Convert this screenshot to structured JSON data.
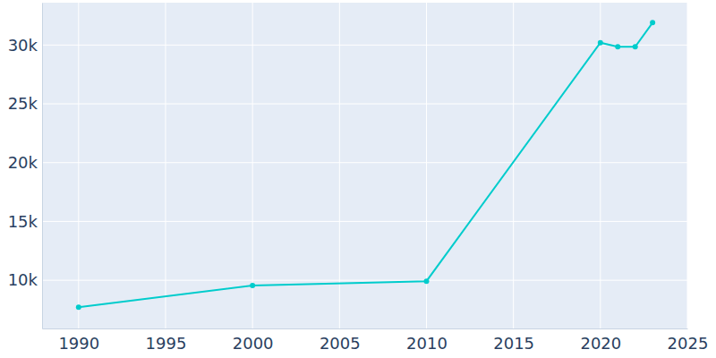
{
  "chart_data": {
    "type": "line",
    "x": [
      1990,
      2000,
      2010,
      2020,
      2021,
      2022,
      2023
    ],
    "values": [
      7700,
      9550,
      9920,
      30200,
      29850,
      29850,
      31900
    ],
    "color": "#00cccc",
    "marker": "circle",
    "xlim": [
      1987.9,
      2025
    ],
    "xticks": [
      1990,
      1995,
      2000,
      2005,
      2010,
      2015,
      2020,
      2025
    ],
    "ylim": [
      5900,
      33600
    ],
    "yticks": [
      {
        "value": 10000,
        "label": "10k"
      },
      {
        "value": 15000,
        "label": "15k"
      },
      {
        "value": 20000,
        "label": "20k"
      },
      {
        "value": 25000,
        "label": "25k"
      },
      {
        "value": 30000,
        "label": "30k"
      }
    ],
    "grid": true
  }
}
